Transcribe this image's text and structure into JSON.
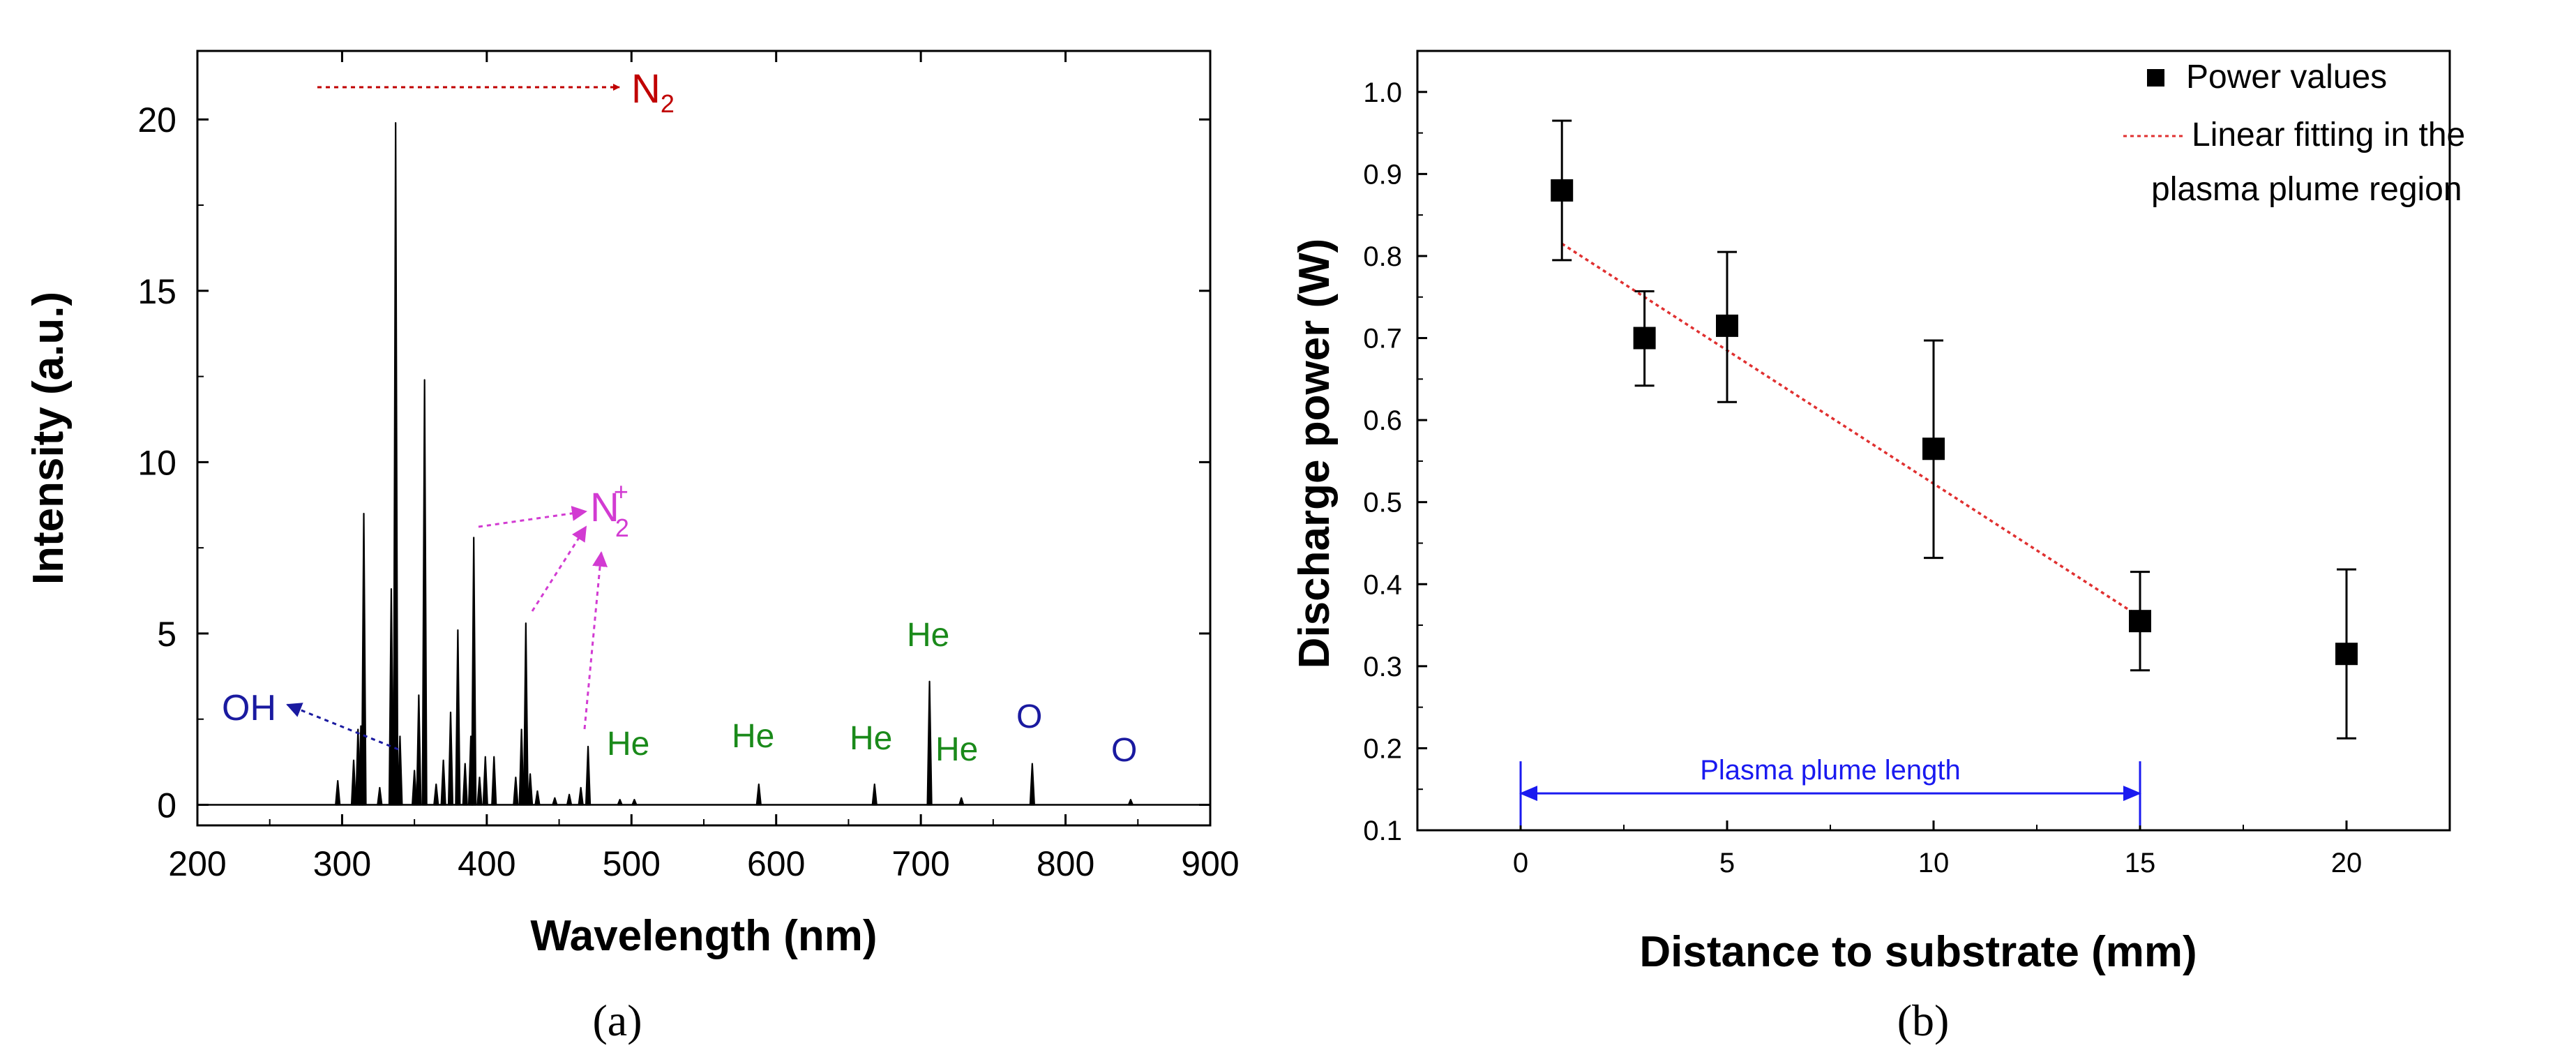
{
  "colors": {
    "axis": "#000000",
    "nitrogen": "#c00000",
    "nitrogen_ion": "#d23bd2",
    "helium": "#1a8a1a",
    "oxygen_oh": "#1a1aa0",
    "fit_line": "#e03030",
    "plume_arrow": "#1a1af0"
  },
  "chart_data": [
    {
      "panel": "a",
      "type": "line",
      "title": "",
      "xlabel": "Wavelength (nm)",
      "ylabel": "Intensity (a.u.)",
      "xlim": [
        200,
        900
      ],
      "ylim": [
        -0.6,
        22
      ],
      "xticks": [
        200,
        300,
        400,
        500,
        600,
        700,
        800,
        900
      ],
      "yticks": [
        0,
        5,
        10,
        15,
        20
      ],
      "caption": "(a)",
      "peaks": [
        {
          "x": 297,
          "y": 0.7
        },
        {
          "x": 308,
          "y": 1.3
        },
        {
          "x": 311,
          "y": 2.2
        },
        {
          "x": 313,
          "y": 2.3
        },
        {
          "x": 315,
          "y": 8.5
        },
        {
          "x": 326,
          "y": 0.5
        },
        {
          "x": 334,
          "y": 6.3
        },
        {
          "x": 337,
          "y": 19.9
        },
        {
          "x": 340,
          "y": 2.0
        },
        {
          "x": 350,
          "y": 1.0
        },
        {
          "x": 353,
          "y": 3.2
        },
        {
          "x": 357,
          "y": 12.4
        },
        {
          "x": 365,
          "y": 0.6
        },
        {
          "x": 370,
          "y": 1.3
        },
        {
          "x": 375,
          "y": 2.7
        },
        {
          "x": 380,
          "y": 5.1
        },
        {
          "x": 385,
          "y": 1.2
        },
        {
          "x": 389,
          "y": 2.0
        },
        {
          "x": 391,
          "y": 7.8
        },
        {
          "x": 395,
          "y": 0.8
        },
        {
          "x": 399,
          "y": 1.4
        },
        {
          "x": 405,
          "y": 1.4
        },
        {
          "x": 420,
          "y": 0.8
        },
        {
          "x": 424,
          "y": 2.2
        },
        {
          "x": 427,
          "y": 5.3
        },
        {
          "x": 430,
          "y": 0.9
        },
        {
          "x": 435,
          "y": 0.4
        },
        {
          "x": 447,
          "y": 0.2
        },
        {
          "x": 457,
          "y": 0.3
        },
        {
          "x": 465,
          "y": 0.5
        },
        {
          "x": 470,
          "y": 1.7
        },
        {
          "x": 492,
          "y": 0.15
        },
        {
          "x": 502,
          "y": 0.15
        },
        {
          "x": 588,
          "y": 0.6
        },
        {
          "x": 668,
          "y": 0.6
        },
        {
          "x": 706,
          "y": 3.6
        },
        {
          "x": 728,
          "y": 0.2
        },
        {
          "x": 777,
          "y": 1.2
        },
        {
          "x": 845,
          "y": 0.15
        }
      ],
      "annotations": [
        {
          "label": "N",
          "subscript": "2",
          "superscript": "",
          "species": "nitrogen"
        },
        {
          "label": "N",
          "subscript": "2",
          "superscript": "+",
          "species": "nitrogen_ion"
        },
        {
          "label": "OH",
          "species": "oxygen_oh"
        },
        {
          "label": "He",
          "species": "helium"
        },
        {
          "label": "He",
          "species": "helium"
        },
        {
          "label": "He",
          "species": "helium"
        },
        {
          "label": "He",
          "species": "helium"
        },
        {
          "label": "He",
          "species": "helium"
        },
        {
          "label": "O",
          "species": "oxygen_oh"
        },
        {
          "label": "O",
          "species": "oxygen_oh"
        }
      ]
    },
    {
      "panel": "b",
      "type": "scatter",
      "title": "",
      "xlabel": "Distance to substrate (mm)",
      "ylabel": "Discharge power (W)",
      "xlim": [
        -2.5,
        22.5
      ],
      "ylim": [
        0.1,
        1.05
      ],
      "xticks": [
        0,
        5,
        10,
        15,
        20
      ],
      "yticks": [
        0.1,
        0.2,
        0.3,
        0.4,
        0.5,
        0.6,
        0.7,
        0.8,
        0.9,
        1.0
      ],
      "caption": "(b)",
      "series": [
        {
          "name": "Power values",
          "marker": "square",
          "x": [
            1,
            3,
            5,
            10,
            15,
            20
          ],
          "y": [
            0.88,
            0.7,
            0.715,
            0.565,
            0.355,
            0.315
          ],
          "err_low": [
            0.795,
            0.642,
            0.622,
            0.432,
            0.295,
            0.212
          ],
          "err_high": [
            0.965,
            0.757,
            0.805,
            0.697,
            0.415,
            0.418
          ]
        },
        {
          "name": "Linear fitting in the plasma plume region",
          "legend_lines": [
            "Linear fitting in the",
            "plasma plume region"
          ],
          "style": "dotted",
          "x": [
            1,
            15
          ],
          "y": [
            0.815,
            0.36
          ]
        }
      ],
      "annotation": {
        "label": "Plasma plume length",
        "x_start": 0,
        "x_end": 15,
        "y": 0.145
      },
      "legend_position": "top-right"
    }
  ]
}
